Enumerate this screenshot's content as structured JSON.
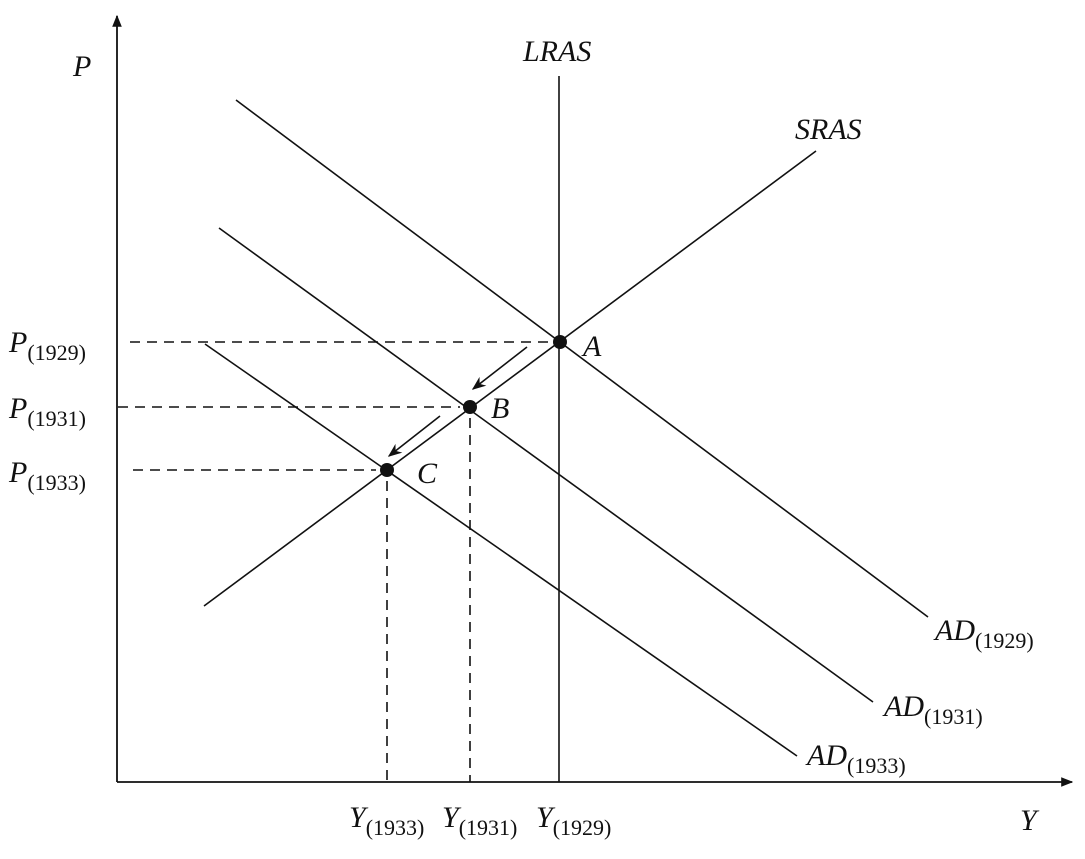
{
  "axes": {
    "y_label": "P",
    "x_label": "Y"
  },
  "curves": {
    "lras": "LRAS",
    "sras": "SRAS",
    "ad_1929": {
      "main": "AD",
      "sub": "(1929)"
    },
    "ad_1931": {
      "main": "AD",
      "sub": "(1931)"
    },
    "ad_1933": {
      "main": "AD",
      "sub": "(1933)"
    }
  },
  "points": {
    "a": "A",
    "b": "B",
    "c": "C"
  },
  "price_levels": {
    "p_1929": {
      "main": "P",
      "sub": "(1929)"
    },
    "p_1931": {
      "main": "P",
      "sub": "(1931)"
    },
    "p_1933": {
      "main": "P",
      "sub": "(1933)"
    }
  },
  "output_levels": {
    "y_1933": {
      "main": "Y",
      "sub": "(1933)"
    },
    "y_1931": {
      "main": "Y",
      "sub": "(1931)"
    },
    "y_1929": {
      "main": "Y",
      "sub": "(1929)"
    }
  }
}
